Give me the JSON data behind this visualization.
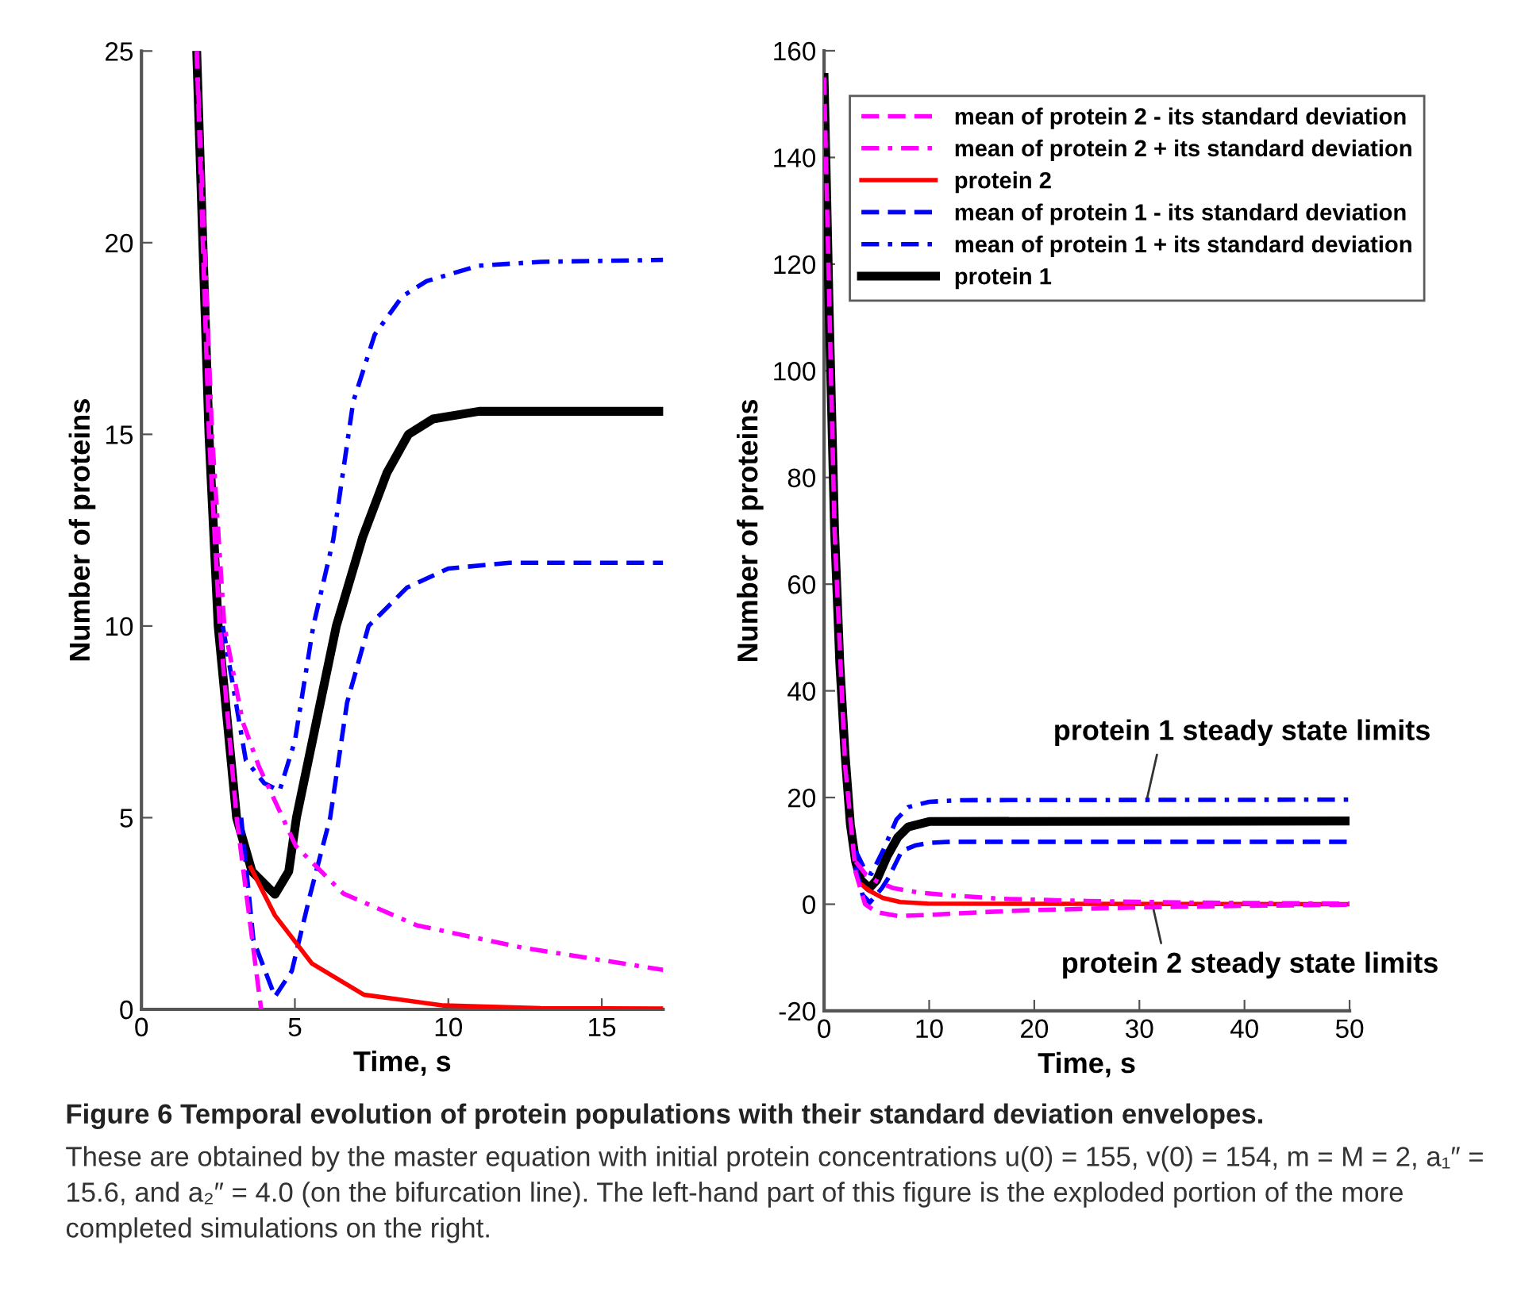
{
  "chart_data": [
    {
      "type": "line",
      "xlabel": "Time, s",
      "ylabel": "Number of proteins",
      "xlim": [
        0,
        17
      ],
      "ylim": [
        0,
        25
      ],
      "xticks": [
        0,
        5,
        10,
        15
      ],
      "yticks": [
        0,
        5,
        10,
        15,
        20,
        25
      ],
      "grid": false,
      "legend": false,
      "annotations": [
        "Figure 6 Temporal evolution of protein populations with their standard deviation envelopes.",
        "These are obtained by the master equation with initial protein concentrations u(0) = 155, v(0) = 154, m = M = 2, a₁″ = 15.6, and a₂″ = 4.0 (on the bifurcation line). The left-hand part of this figure is the exploded portion of the more completed simulations on the right."
      ],
      "series": [
        {
          "color": "#ff00ff",
          "line_style": "dashed",
          "x": [
            1.8,
            2.2,
            2.55,
            3.1,
            3.5,
            3.9
          ],
          "values": [
            25,
            15,
            10,
            5,
            2.5,
            0
          ]
        },
        {
          "color": "#ff00ff",
          "line_style": "dashdot",
          "x": [
            1.8,
            2.3,
            2.7,
            3.3,
            3.83,
            5.03,
            6.58,
            8.98,
            12.4,
            17
          ],
          "values": [
            25,
            15,
            10,
            7.5,
            6.33,
            4.26,
            3.02,
            2.19,
            1.61,
            1.03
          ]
        },
        {
          "color": "#ff0000",
          "line_style": "solid",
          "x": [
            3.56,
            4.35,
            5.55,
            7.25,
            9.85,
            13,
            17
          ],
          "values": [
            3.7,
            2.45,
            1.2,
            0.38,
            0.1,
            0.03,
            0.02
          ]
        },
        {
          "color": "#0000ff",
          "line_style": "dashed",
          "x": [
            3.25,
            3.65,
            4.35,
            4.9,
            5.5,
            6.15,
            6.7,
            7.4,
            8.65,
            10,
            12,
            17
          ],
          "values": [
            5,
            1.8,
            0.33,
            1,
            3,
            5,
            8,
            10,
            11,
            11.5,
            11.65,
            11.65
          ]
        },
        {
          "color": "#0000ff",
          "line_style": "dashdot",
          "x": [
            2.65,
            3.4,
            4.0,
            4.5,
            5.0,
            5.6,
            6.25,
            6.9,
            7.6,
            8.5,
            9.3,
            11,
            13,
            17
          ],
          "values": [
            10,
            6.5,
            5.9,
            5.7,
            7,
            10,
            12.25,
            15.85,
            17.6,
            18.6,
            19.0,
            19.4,
            19.5,
            19.55
          ]
        },
        {
          "color": "#000000",
          "line_style": "solid",
          "x": [
            1.8,
            2.2,
            2.5,
            3.1,
            3.6,
            4.35,
            4.8,
            5.05,
            5.7,
            6.35,
            7.2,
            8,
            8.7,
            9.5,
            11,
            17
          ],
          "values": [
            25,
            15,
            10,
            5,
            3.6,
            3.0,
            3.6,
            5,
            7.5,
            10,
            12.3,
            14,
            15,
            15.4,
            15.6,
            15.6
          ]
        }
      ]
    },
    {
      "type": "line",
      "xlabel": "Time, s",
      "ylabel": "Number of proteins",
      "xlim": [
        0,
        50
      ],
      "ylim": [
        -20,
        160
      ],
      "xticks": [
        0,
        10,
        20,
        30,
        40,
        50
      ],
      "yticks": [
        -20,
        0,
        20,
        40,
        60,
        80,
        100,
        120,
        140,
        160
      ],
      "grid": false,
      "legend": "top",
      "annotations": [
        {
          "text": "protein 1 steady state limits",
          "x": 30.7,
          "y": 19.55
        },
        {
          "text": "protein 2 steady state limits",
          "x": 31.3,
          "y": -0.6
        }
      ],
      "series": [
        {
          "name": "mean of protein 2 - its standard deviation",
          "color": "#ff00ff",
          "line_style": "dashed",
          "x": [
            0,
            1,
            2,
            3,
            3.9,
            5,
            7,
            10,
            15,
            20,
            30,
            40,
            50
          ],
          "values": [
            155,
            70,
            26,
            6,
            0,
            -1.5,
            -2.2,
            -2,
            -1.5,
            -1.1,
            -0.6,
            -0.3,
            -0.1
          ]
        },
        {
          "name": "mean of protein 2 + its standard deviation",
          "color": "#ff00ff",
          "line_style": "dashdot",
          "x": [
            3,
            4,
            5,
            6.6,
            9,
            12.4,
            17,
            25,
            35,
            50
          ],
          "values": [
            8,
            5.5,
            4.3,
            3,
            2.2,
            1.6,
            1,
            0.6,
            0.3,
            0.1
          ]
        },
        {
          "name": "protein 2",
          "color": "#ff0000",
          "line_style": "solid",
          "x": [
            3.56,
            4.35,
            5.55,
            7.25,
            9.85,
            50
          ],
          "values": [
            3.7,
            2.5,
            1.2,
            0.4,
            0.1,
            0
          ]
        },
        {
          "name": "mean of protein 1 - its standard deviation",
          "color": "#0000ff",
          "line_style": "dashed",
          "x": [
            3,
            3.65,
            4.35,
            5.5,
            6.15,
            7.4,
            8.65,
            10,
            12,
            50
          ],
          "values": [
            7,
            1.8,
            0.3,
            3,
            5,
            10,
            11,
            11.5,
            11.7,
            11.7
          ]
        },
        {
          "name": "mean of protein 1 + its standard deviation",
          "color": "#0000ff",
          "line_style": "dashdot",
          "x": [
            3,
            4,
            4.5,
            5.6,
            6.9,
            8,
            10,
            13,
            50
          ],
          "values": [
            10,
            6,
            5.7,
            10,
            15.9,
            18.2,
            19.2,
            19.5,
            19.6
          ]
        },
        {
          "name": "protein 1",
          "color": "#000000",
          "line_style": "solid",
          "x": [
            0,
            0.5,
            1,
            1.5,
            2,
            2.5,
            3,
            3.5,
            4.3,
            5,
            6,
            7,
            8,
            10,
            50
          ],
          "values": [
            155,
            110,
            70,
            45,
            28,
            15,
            8,
            4.5,
            3,
            4.5,
            9,
            12.5,
            14.5,
            15.5,
            15.6
          ]
        }
      ]
    }
  ]
}
